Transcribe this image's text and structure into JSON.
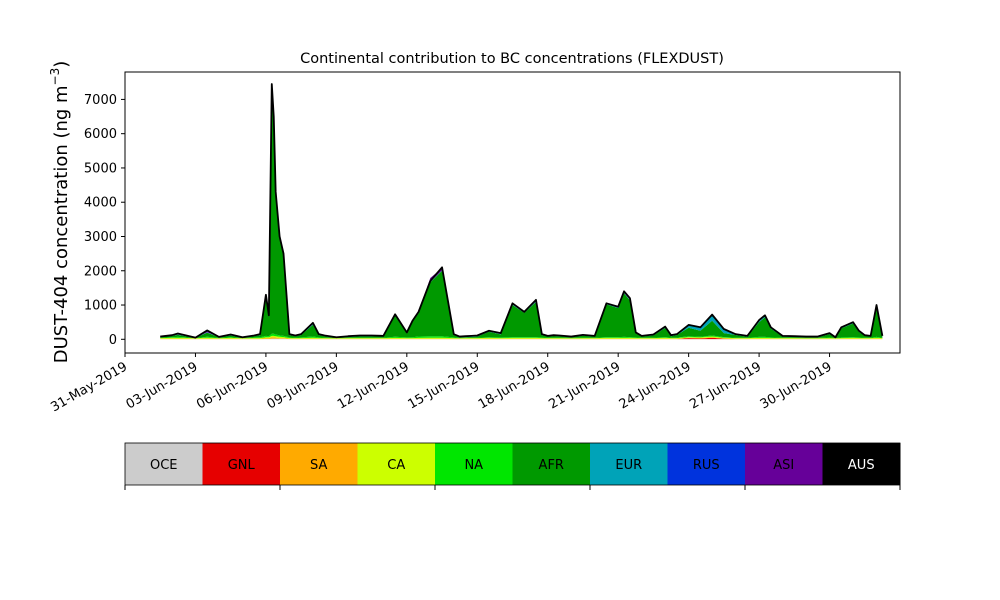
{
  "chart_data": {
    "type": "area",
    "title": "Continental contribution to BC concentrations (FLEXDUST)",
    "ylabel_main": "DUST-404 concentration (ng m",
    "ylabel_sup": "−3",
    "ylabel_close": ")",
    "xlabel": "",
    "ylim": [
      -400,
      7800
    ],
    "yticks": [
      0,
      1000,
      2000,
      3000,
      4000,
      5000,
      6000,
      7000
    ],
    "xlim": [
      "2019-05-31",
      "2019-07-03"
    ],
    "xticks": [
      "31-May-2019",
      "03-Jun-2019",
      "06-Jun-2019",
      "09-Jun-2019",
      "12-Jun-2019",
      "15-Jun-2019",
      "18-Jun-2019",
      "21-Jun-2019",
      "24-Jun-2019",
      "27-Jun-2019",
      "30-Jun-2019"
    ],
    "grid": false,
    "stack_order": [
      "OCE",
      "GNL",
      "SA",
      "CA",
      "NA",
      "AFR",
      "EUR",
      "RUS",
      "ASI",
      "AUS"
    ],
    "legend": [
      {
        "name": "OCE",
        "color": "#cccccc",
        "text_color": "#000000"
      },
      {
        "name": "GNL",
        "color": "#e60000",
        "text_color": "#000000"
      },
      {
        "name": "SA",
        "color": "#ffaa00",
        "text_color": "#000000"
      },
      {
        "name": "CA",
        "color": "#ccff00",
        "text_color": "#000000"
      },
      {
        "name": "NA",
        "color": "#00e600",
        "text_color": "#000000"
      },
      {
        "name": "AFR",
        "color": "#009900",
        "text_color": "#000000"
      },
      {
        "name": "EUR",
        "color": "#00a3b8",
        "text_color": "#000000"
      },
      {
        "name": "RUS",
        "color": "#0033dd",
        "text_color": "#000000"
      },
      {
        "name": "ASI",
        "color": "#660099",
        "text_color": "#000000"
      },
      {
        "name": "AUS",
        "color": "#000000",
        "text_color": "#ffffff"
      }
    ],
    "x": [
      "2019-06-01T12:00",
      "2019-06-02T00:00",
      "2019-06-02T06:00",
      "2019-06-02T12:00",
      "2019-06-03T00:00",
      "2019-06-03T12:00",
      "2019-06-04T00:00",
      "2019-06-04T12:00",
      "2019-06-05T00:00",
      "2019-06-05T12:00",
      "2019-06-05T18:00",
      "2019-06-06T00:00",
      "2019-06-06T03:00",
      "2019-06-06T06:00",
      "2019-06-06T08:00",
      "2019-06-06T10:00",
      "2019-06-06T14:00",
      "2019-06-06T18:00",
      "2019-06-07T00:00",
      "2019-06-07T06:00",
      "2019-06-07T12:00",
      "2019-06-08T00:00",
      "2019-06-08T06:00",
      "2019-06-08T12:00",
      "2019-06-09T00:00",
      "2019-06-09T12:00",
      "2019-06-10T00:00",
      "2019-06-10T12:00",
      "2019-06-11T00:00",
      "2019-06-11T12:00",
      "2019-06-12T00:00",
      "2019-06-12T06:00",
      "2019-06-12T12:00",
      "2019-06-13T00:00",
      "2019-06-13T12:00",
      "2019-06-14T00:00",
      "2019-06-14T06:00",
      "2019-06-14T12:00",
      "2019-06-14T18:00",
      "2019-06-15T00:00",
      "2019-06-15T12:00",
      "2019-06-16T00:00",
      "2019-06-16T12:00",
      "2019-06-17T00:00",
      "2019-06-17T12:00",
      "2019-06-17T18:00",
      "2019-06-18T00:00",
      "2019-06-18T06:00",
      "2019-06-18T12:00",
      "2019-06-19T00:00",
      "2019-06-19T12:00",
      "2019-06-20T00:00",
      "2019-06-20T12:00",
      "2019-06-21T00:00",
      "2019-06-21T06:00",
      "2019-06-21T12:00",
      "2019-06-21T18:00",
      "2019-06-22T00:00",
      "2019-06-22T12:00",
      "2019-06-23T00:00",
      "2019-06-23T06:00",
      "2019-06-23T12:00",
      "2019-06-24T00:00",
      "2019-06-24T12:00",
      "2019-06-25T00:00",
      "2019-06-25T12:00",
      "2019-06-26T00:00",
      "2019-06-26T12:00",
      "2019-06-27T00:00",
      "2019-06-27T06:00",
      "2019-06-27T12:00",
      "2019-06-28T00:00",
      "2019-06-28T12:00",
      "2019-06-29T00:00",
      "2019-06-29T12:00",
      "2019-06-30T00:00",
      "2019-06-30T06:00",
      "2019-06-30T12:00",
      "2019-07-01T00:00",
      "2019-07-01T06:00",
      "2019-07-01T12:00",
      "2019-07-01T18:00",
      "2019-07-02T00:00",
      "2019-07-02T06:00"
    ],
    "total": [
      80,
      120,
      170,
      130,
      50,
      260,
      70,
      140,
      60,
      110,
      150,
      1300,
      700,
      7450,
      6500,
      4300,
      3000,
      2500,
      150,
      110,
      150,
      480,
      150,
      110,
      60,
      90,
      110,
      110,
      100,
      730,
      200,
      550,
      800,
      1700,
      2100,
      150,
      80,
      90,
      100,
      110,
      250,
      180,
      1050,
      800,
      1150,
      150,
      100,
      120,
      110,
      80,
      130,
      100,
      1050,
      950,
      1400,
      1200,
      200,
      100,
      140,
      370,
      120,
      150,
      420,
      350,
      720,
      300,
      150,
      100,
      560,
      700,
      350,
      100,
      90,
      80,
      80,
      180,
      60,
      350,
      500,
      250,
      120,
      100,
      1000,
      100
    ],
    "series": [
      {
        "name": "OCE",
        "values": [
          5,
          5,
          5,
          5,
          5,
          5,
          5,
          5,
          5,
          5,
          5,
          10,
          10,
          20,
          20,
          20,
          15,
          15,
          5,
          5,
          5,
          5,
          5,
          5,
          5,
          5,
          5,
          5,
          5,
          5,
          5,
          5,
          5,
          5,
          5,
          5,
          5,
          5,
          5,
          5,
          5,
          5,
          5,
          5,
          5,
          5,
          5,
          5,
          5,
          5,
          5,
          5,
          5,
          5,
          5,
          5,
          5,
          5,
          5,
          5,
          5,
          5,
          5,
          5,
          5,
          5,
          5,
          5,
          5,
          5,
          5,
          5,
          5,
          5,
          5,
          5,
          5,
          5,
          5,
          5,
          5,
          5,
          5,
          5
        ]
      },
      {
        "name": "GNL",
        "values": [
          0,
          0,
          0,
          0,
          0,
          0,
          0,
          0,
          0,
          0,
          0,
          0,
          0,
          0,
          0,
          0,
          0,
          0,
          0,
          0,
          0,
          0,
          0,
          0,
          0,
          0,
          0,
          0,
          0,
          0,
          0,
          0,
          0,
          0,
          0,
          0,
          0,
          0,
          0,
          0,
          0,
          0,
          0,
          0,
          0,
          0,
          0,
          0,
          0,
          0,
          0,
          0,
          0,
          0,
          0,
          0,
          0,
          0,
          0,
          0,
          0,
          0,
          30,
          20,
          40,
          10,
          0,
          0,
          0,
          0,
          0,
          0,
          0,
          0,
          0,
          0,
          0,
          0,
          0,
          0,
          0,
          0,
          0,
          0
        ]
      },
      {
        "name": "SA",
        "values": [
          10,
          10,
          10,
          10,
          10,
          10,
          10,
          10,
          10,
          10,
          10,
          20,
          20,
          40,
          40,
          30,
          20,
          20,
          10,
          10,
          10,
          10,
          10,
          10,
          10,
          10,
          10,
          10,
          10,
          10,
          10,
          10,
          10,
          10,
          10,
          10,
          10,
          10,
          10,
          10,
          10,
          10,
          10,
          10,
          10,
          10,
          10,
          10,
          10,
          10,
          10,
          10,
          10,
          10,
          10,
          10,
          10,
          10,
          10,
          10,
          10,
          10,
          10,
          10,
          10,
          10,
          10,
          10,
          10,
          10,
          10,
          10,
          10,
          10,
          10,
          10,
          10,
          10,
          10,
          10,
          10,
          10,
          10,
          10
        ]
      },
      {
        "name": "CA",
        "values": [
          20,
          25,
          25,
          25,
          15,
          30,
          15,
          25,
          15,
          20,
          20,
          30,
          30,
          40,
          40,
          40,
          40,
          30,
          20,
          20,
          20,
          30,
          20,
          20,
          15,
          20,
          20,
          20,
          20,
          25,
          20,
          20,
          25,
          30,
          30,
          20,
          15,
          20,
          20,
          20,
          25,
          20,
          25,
          25,
          25,
          20,
          20,
          20,
          20,
          15,
          20,
          20,
          25,
          25,
          25,
          25,
          20,
          20,
          20,
          25,
          20,
          20,
          20,
          20,
          25,
          20,
          20,
          20,
          25,
          25,
          20,
          20,
          20,
          15,
          15,
          20,
          15,
          20,
          25,
          20,
          20,
          20,
          25,
          20
        ]
      },
      {
        "name": "NA",
        "values": [
          10,
          20,
          30,
          20,
          5,
          30,
          10,
          20,
          5,
          20,
          25,
          40,
          30,
          60,
          60,
          50,
          40,
          35,
          20,
          15,
          20,
          35,
          20,
          15,
          5,
          10,
          15,
          15,
          10,
          35,
          20,
          25,
          40,
          45,
          45,
          20,
          10,
          10,
          10,
          15,
          20,
          20,
          25,
          25,
          25,
          20,
          15,
          15,
          15,
          10,
          15,
          10,
          25,
          25,
          30,
          25,
          20,
          10,
          15,
          25,
          15,
          15,
          25,
          20,
          30,
          20,
          15,
          10,
          30,
          30,
          20,
          10,
          10,
          10,
          10,
          20,
          5,
          20,
          25,
          20,
          15,
          10,
          30,
          10
        ]
      },
      {
        "name": "AFR",
        "values": [
          20,
          40,
          60,
          40,
          10,
          120,
          20,
          50,
          15,
          35,
          60,
          1140,
          570,
          7140,
          6190,
          4060,
          2820,
          2340,
          70,
          40,
          70,
          340,
          70,
          40,
          10,
          25,
          35,
          35,
          35,
          630,
          120,
          460,
          680,
          1570,
          1910,
          70,
          25,
          20,
          25,
          30,
          160,
          90,
          935,
          705,
          1025,
          70,
          35,
          45,
          40,
          25,
          55,
          35,
          955,
          845,
          1270,
          1075,
          130,
          35,
          65,
          265,
          40,
          75,
          245,
          175,
          430,
          115,
          75,
          30,
          430,
          570,
          255,
          35,
          25,
          20,
          20,
          95,
          10,
          265,
          395,
          160,
          55,
          45,
          890,
          35
        ]
      },
      {
        "name": "EUR",
        "values": [
          5,
          5,
          10,
          10,
          5,
          10,
          5,
          10,
          5,
          10,
          10,
          20,
          10,
          20,
          20,
          20,
          20,
          10,
          10,
          10,
          10,
          20,
          10,
          10,
          10,
          10,
          10,
          10,
          10,
          10,
          10,
          10,
          10,
          10,
          10,
          10,
          10,
          10,
          10,
          10,
          10,
          10,
          15,
          10,
          15,
          10,
          10,
          15,
          10,
          10,
          15,
          15,
          15,
          15,
          15,
          15,
          10,
          15,
          20,
          30,
          25,
          20,
          70,
          90,
          160,
          100,
          20,
          20,
          30,
          35,
          25,
          15,
          15,
          15,
          15,
          20,
          10,
          20,
          25,
          20,
          10,
          10,
          15,
          10
        ]
      },
      {
        "name": "RUS",
        "values": [
          0,
          0,
          0,
          0,
          0,
          0,
          0,
          0,
          0,
          0,
          0,
          0,
          0,
          0,
          0,
          0,
          0,
          0,
          0,
          0,
          0,
          0,
          0,
          0,
          0,
          0,
          0,
          0,
          0,
          0,
          0,
          0,
          0,
          0,
          0,
          0,
          0,
          0,
          0,
          0,
          0,
          0,
          0,
          0,
          0,
          0,
          0,
          0,
          0,
          0,
          0,
          0,
          0,
          0,
          0,
          0,
          0,
          0,
          0,
          0,
          0,
          0,
          0,
          0,
          0,
          0,
          0,
          0,
          0,
          0,
          0,
          0,
          0,
          0,
          0,
          0,
          0,
          0,
          0,
          0,
          0,
          0,
          0,
          0
        ]
      },
      {
        "name": "ASI",
        "values": [
          10,
          15,
          30,
          20,
          5,
          60,
          10,
          20,
          5,
          10,
          20,
          40,
          55,
          130,
          125,
          80,
          45,
          50,
          15,
          10,
          15,
          40,
          15,
          10,
          5,
          10,
          15,
          15,
          10,
          25,
          15,
          20,
          40,
          120,
          70,
          15,
          5,
          5,
          10,
          10,
          20,
          15,
          45,
          30,
          50,
          15,
          5,
          10,
          10,
          5,
          10,
          5,
          25,
          25,
          45,
          45,
          15,
          5,
          5,
          10,
          5,
          5,
          20,
          10,
          30,
          20,
          5,
          5,
          30,
          25,
          15,
          5,
          5,
          5,
          5,
          10,
          5,
          10,
          25,
          15,
          5,
          5,
          25,
          10
        ]
      },
      {
        "name": "AUS",
        "values": [
          0,
          0,
          0,
          0,
          0,
          0,
          0,
          0,
          0,
          0,
          0,
          0,
          0,
          0,
          0,
          0,
          0,
          0,
          0,
          0,
          0,
          0,
          0,
          0,
          0,
          0,
          0,
          0,
          0,
          0,
          0,
          0,
          0,
          0,
          0,
          0,
          0,
          0,
          0,
          0,
          0,
          0,
          0,
          0,
          0,
          0,
          0,
          0,
          0,
          0,
          0,
          0,
          0,
          0,
          0,
          0,
          0,
          0,
          0,
          0,
          0,
          0,
          0,
          0,
          0,
          0,
          0,
          0,
          0,
          0,
          0,
          0,
          0,
          0,
          0,
          0,
          0,
          0,
          0,
          0,
          0,
          0,
          0,
          0
        ]
      }
    ]
  }
}
